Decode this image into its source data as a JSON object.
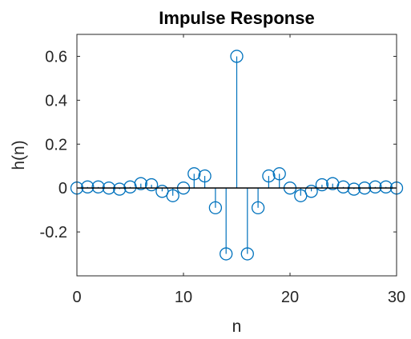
{
  "chart_data": {
    "type": "stem",
    "title": "Impulse Response",
    "xlabel": "n",
    "ylabel": "h(n)",
    "xlim": [
      0,
      30
    ],
    "ylim": [
      -0.4,
      0.7
    ],
    "xticks": [
      0,
      10,
      20,
      30
    ],
    "xtick_labels": [
      "0",
      "10",
      "20",
      "30"
    ],
    "yticks": [
      -0.2,
      0,
      0.2,
      0.4,
      0.6
    ],
    "ytick_labels": [
      "-0.2",
      "0",
      "0.2",
      "0.4",
      "0.6"
    ],
    "grid": false,
    "color": "#0072BD",
    "series": [
      {
        "x": [
          0,
          1,
          2,
          3,
          4,
          5,
          6,
          7,
          8,
          9,
          10,
          11,
          12,
          13,
          14,
          15,
          16,
          17,
          18,
          19,
          20,
          21,
          22,
          23,
          24,
          25,
          26,
          27,
          28,
          29,
          30
        ],
        "values": [
          0,
          0.005,
          0.005,
          0,
          -0.005,
          0.005,
          0.02,
          0.015,
          -0.015,
          -0.035,
          0,
          0.065,
          0.055,
          -0.09,
          -0.3,
          0.6,
          -0.3,
          -0.09,
          0.055,
          0.065,
          0,
          -0.035,
          -0.015,
          0.015,
          0.02,
          0.005,
          -0.005,
          0,
          0.005,
          0.005,
          0
        ]
      }
    ]
  }
}
